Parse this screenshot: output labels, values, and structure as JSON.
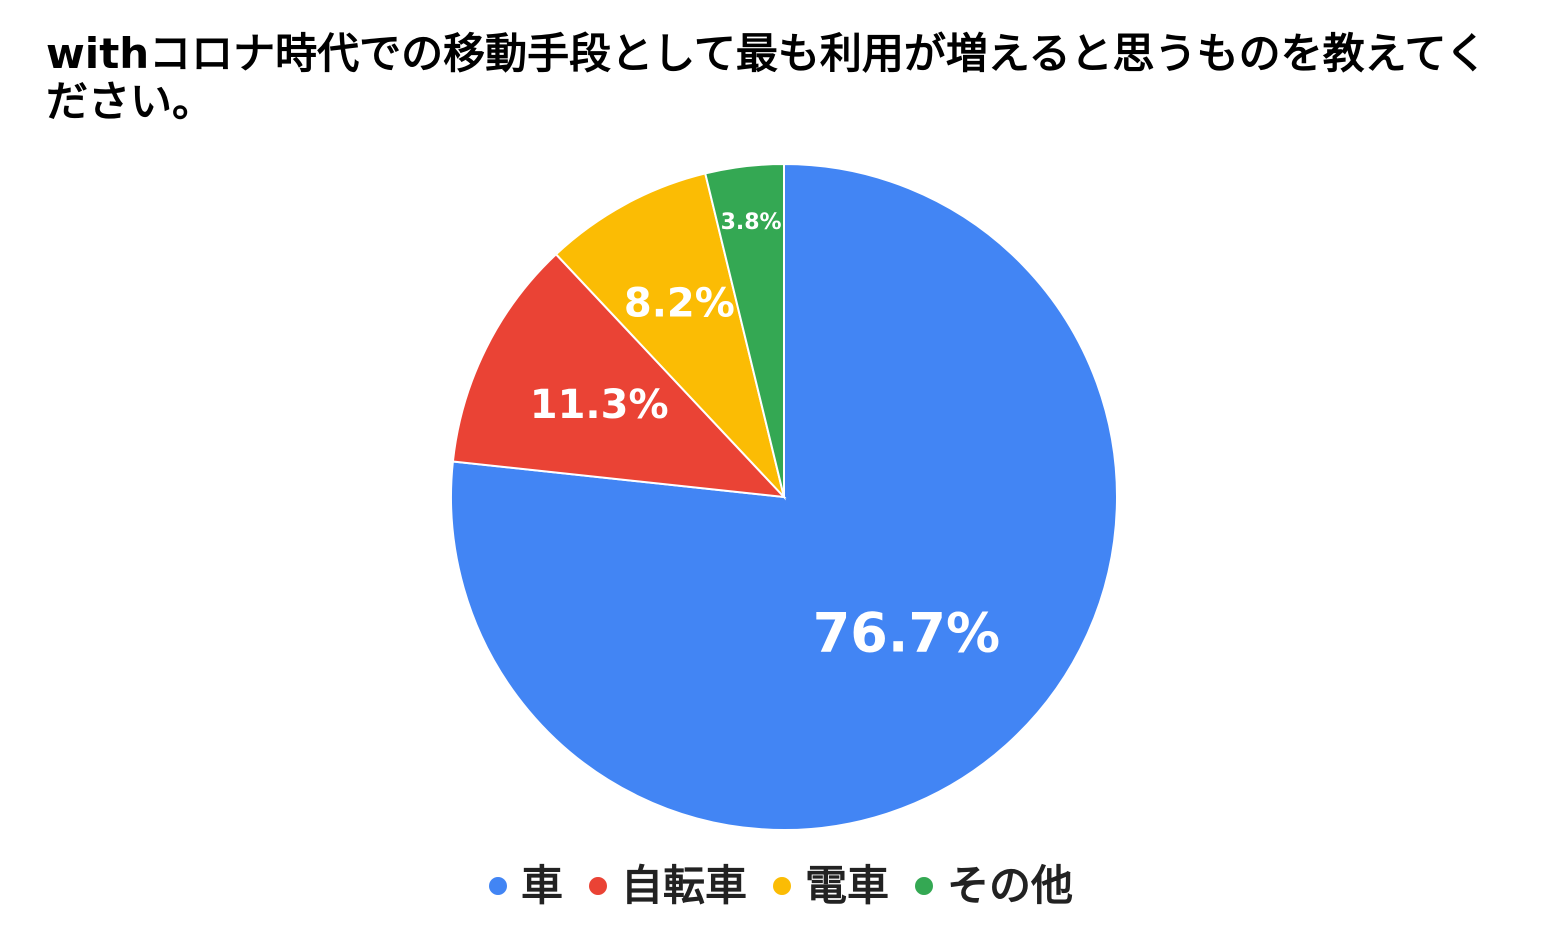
{
  "chart_data": {
    "type": "pie",
    "title": "withコロナ時代での移動手段として最も利用が増えると思うものを教えてください。",
    "categories": [
      "車",
      "自転車",
      "電車",
      "その他"
    ],
    "values": [
      76.7,
      11.3,
      8.2,
      3.8
    ],
    "value_labels": [
      "76.7%",
      "11.3%",
      "8.2%",
      "3.8%"
    ],
    "colors": [
      "#4285F4",
      "#EA4335",
      "#FBBC04",
      "#34A853"
    ],
    "start": "12 o'clock, clockwise",
    "legend_position": "bottom"
  }
}
